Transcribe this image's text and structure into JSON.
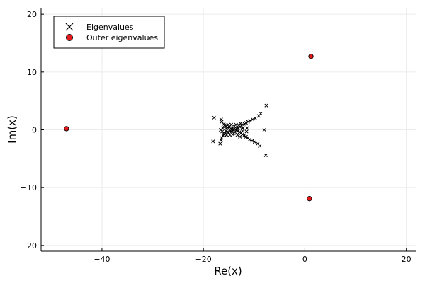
{
  "chart_data": {
    "type": "scatter",
    "xlabel": "Re(x)",
    "ylabel": "Im(x)",
    "xlim": [
      -52,
      22
    ],
    "ylim": [
      -21,
      21
    ],
    "xticks": [
      -40,
      -20,
      0,
      20
    ],
    "yticks": [
      -20,
      -10,
      0,
      10,
      20
    ],
    "xtick_labels": [
      "−40",
      "−20",
      "0",
      "20"
    ],
    "ytick_labels": [
      "−20",
      "−10",
      "0",
      "10",
      "20"
    ],
    "grid": true,
    "legend_position": "top-left",
    "series": [
      {
        "name": "Eigenvalues",
        "marker": "x",
        "color": "#000000",
        "points": [
          [
            -7.6,
            4.2
          ],
          [
            -7.7,
            -4.4
          ],
          [
            -8.0,
            0.0
          ],
          [
            -8.7,
            2.8
          ],
          [
            -8.9,
            -2.8
          ],
          [
            -9.1,
            2.4
          ],
          [
            -9.3,
            -2.4
          ],
          [
            -9.8,
            2.0
          ],
          [
            -9.9,
            -2.1
          ],
          [
            -10.3,
            1.8
          ],
          [
            -10.4,
            -1.9
          ],
          [
            -10.8,
            1.6
          ],
          [
            -10.9,
            -1.7
          ],
          [
            -11.2,
            1.4
          ],
          [
            -11.3,
            -1.4
          ],
          [
            -11.6,
            1.2
          ],
          [
            -11.6,
            -1.2
          ],
          [
            -11.9,
            1.0
          ],
          [
            -12.0,
            -1.0
          ],
          [
            -12.2,
            0.9
          ],
          [
            -12.3,
            -0.8
          ],
          [
            -12.5,
            0.7
          ],
          [
            -12.6,
            -0.6
          ],
          [
            -12.2,
            0.3
          ],
          [
            -12.3,
            -0.2
          ],
          [
            -12.8,
            0.5
          ],
          [
            -12.9,
            -0.4
          ],
          [
            -13.1,
            0.3
          ],
          [
            -13.2,
            -0.2
          ],
          [
            -13.4,
            0.2
          ],
          [
            -13.5,
            -0.1
          ],
          [
            -13.7,
            0.4
          ],
          [
            -13.8,
            -0.4
          ],
          [
            -14.0,
            0.1
          ],
          [
            -14.1,
            -0.1
          ],
          [
            -14.3,
            0.3
          ],
          [
            -14.4,
            -0.3
          ],
          [
            -14.6,
            0.2
          ],
          [
            -14.7,
            -0.2
          ],
          [
            -14.9,
            0.5
          ],
          [
            -15.0,
            -0.5
          ],
          [
            -15.2,
            0.4
          ],
          [
            -15.3,
            -0.4
          ],
          [
            -15.5,
            0.2
          ],
          [
            -15.6,
            -0.2
          ],
          [
            -15.8,
            0.8
          ],
          [
            -15.9,
            -0.8
          ],
          [
            -16.0,
            1.0
          ],
          [
            -16.1,
            -1.0
          ],
          [
            -16.2,
            0.3
          ],
          [
            -16.3,
            -0.3
          ],
          [
            -16.4,
            1.4
          ],
          [
            -16.4,
            -1.4
          ],
          [
            -16.5,
            1.8
          ],
          [
            -16.5,
            -1.8
          ],
          [
            -13.0,
            0.8
          ],
          [
            -13.3,
            -0.9
          ],
          [
            -13.6,
            0.9
          ],
          [
            -14.2,
            -0.8
          ],
          [
            -14.5,
            0.9
          ],
          [
            -14.8,
            -0.9
          ],
          [
            -15.1,
            0.9
          ],
          [
            -15.4,
            -0.9
          ],
          [
            -12.7,
            1.1
          ],
          [
            -12.8,
            -1.2
          ],
          [
            -13.9,
            0.6
          ],
          [
            -14.0,
            -0.6
          ],
          [
            -15.7,
            0.6
          ],
          [
            -15.8,
            -0.6
          ],
          [
            -11.4,
            0.3
          ],
          [
            -11.5,
            -0.3
          ],
          [
            -17.9,
            2.1
          ],
          [
            -18.1,
            -2.0
          ],
          [
            -16.7,
            -2.4
          ],
          [
            -16.6,
            0.0
          ]
        ]
      },
      {
        "name": "Outer eigenvalues",
        "marker": "circle",
        "color": "#e31a1c",
        "points": [
          [
            -47.0,
            0.2
          ],
          [
            1.2,
            12.7
          ],
          [
            0.9,
            -11.9
          ]
        ]
      }
    ]
  }
}
